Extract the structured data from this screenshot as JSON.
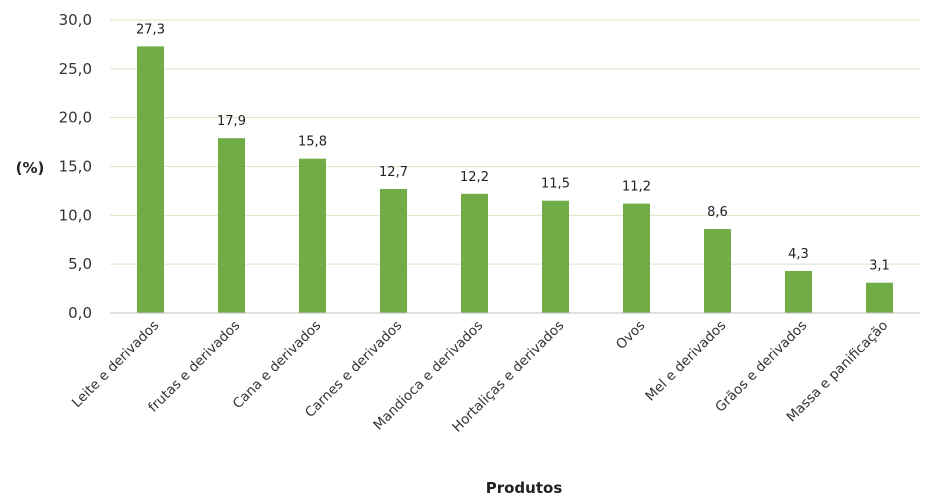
{
  "chart_data": {
    "type": "bar",
    "categories": [
      "Leite e derivados",
      "frutas e derivados",
      "Cana e derivados",
      "Carnes e derivados",
      "Mandioca e derivados",
      "Hortaliças e derivados",
      "Ovos",
      "Mel e derivados",
      "Grãos e derivados",
      "Massa e panificação"
    ],
    "values": [
      27.3,
      17.9,
      15.8,
      12.7,
      12.2,
      11.5,
      11.2,
      8.6,
      4.3,
      3.1
    ],
    "value_labels": [
      "27,3",
      "17,9",
      "15,8",
      "12,7",
      "12,2",
      "11,5",
      "11,2",
      "8,6",
      "4,3",
      "3,1"
    ],
    "yticks": [
      0,
      5,
      10,
      15,
      20,
      25,
      30
    ],
    "ytick_labels": [
      "0,0",
      "5,0",
      "10,0",
      "15,0",
      "20,0",
      "25,0",
      "30,0"
    ],
    "title": "",
    "xlabel": "Produtos",
    "ylabel": "(%)",
    "ylim": [
      0,
      30
    ],
    "grid": true,
    "bar_color": "#70ad47",
    "grid_color": "#d9e6c7"
  }
}
